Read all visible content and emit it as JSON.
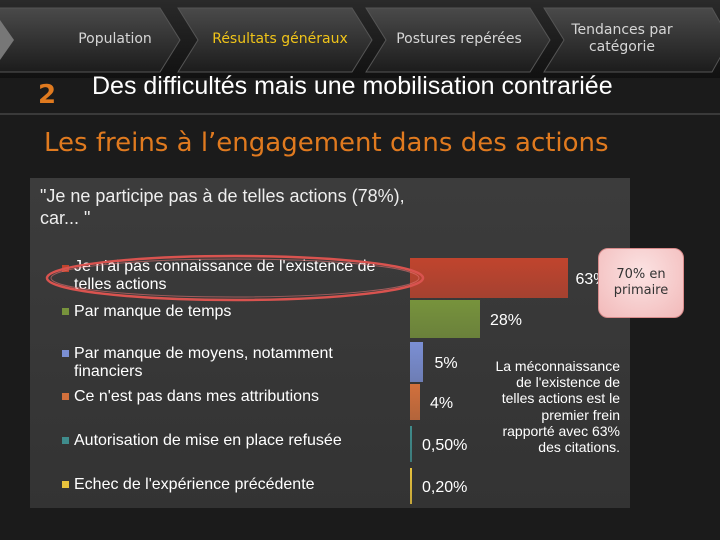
{
  "nav": {
    "items": [
      {
        "label": "Population",
        "active": false
      },
      {
        "label": "Résultats généraux",
        "active": true
      },
      {
        "label": "Postures repérées",
        "active": false
      },
      {
        "label": "Tendances par catégorie",
        "active": false
      }
    ]
  },
  "section_number": "2",
  "title": "Des difficultés mais une mobilisation contrariée",
  "heading": "Les freins à l’engagement dans des actions",
  "quote": {
    "line1": "\"Je ne participe pas à de telles actions (78%),",
    "line2": "car... \""
  },
  "callout": "70% en primaire",
  "note": "La méconnaissance de l'existence de telles actions est le premier frein rapporté avec 63% des citations.",
  "colors": {
    "accent": "#e07a1f",
    "active_nav": "#f0c419"
  },
  "chart_data": {
    "type": "bar",
    "orientation": "horizontal",
    "title": "\"Je ne participe pas à de telles actions (78%), car... \"",
    "categories": [
      "Je n'ai pas connaissance de l'existence de telles actions",
      "Par manque de temps",
      "Par manque de moyens, notamment financiers",
      "Ce n'est pas dans mes attributions",
      "Autorisation de mise en place refusée",
      "Echec de l'expérience précédente"
    ],
    "values": [
      63,
      28,
      5,
      4,
      0.5,
      0.2
    ],
    "value_labels": [
      "63%",
      "28%",
      "5%",
      "4%",
      "0,50%",
      "0,20%"
    ],
    "colors": [
      "#c0442e",
      "#77933c",
      "#7b8fd4",
      "#d2703c",
      "#3f8c8c",
      "#e8c23c"
    ],
    "xlim": [
      0,
      100
    ],
    "legend": "left"
  }
}
